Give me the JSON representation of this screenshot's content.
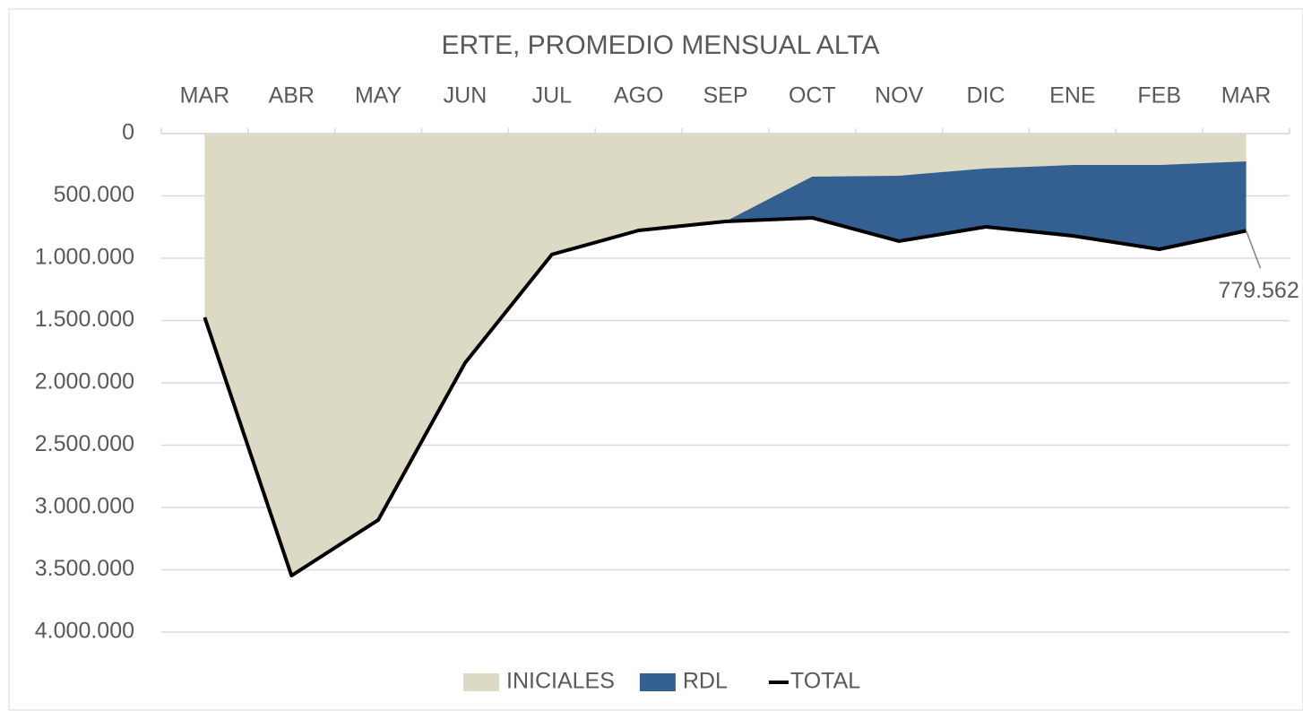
{
  "chart_data": {
    "type": "stacked-area-line",
    "title": "ERTE, PROMEDIO MENSUAL ALTA",
    "categories": [
      "MAR",
      "ABR",
      "MAY",
      "JUN",
      "JUL",
      "AGO",
      "SEP",
      "OCT",
      "NOV",
      "DIC",
      "ENE",
      "FEB",
      "MAR"
    ],
    "series": [
      {
        "name": "INICIALES",
        "color": "#dcd9c4",
        "kind": "area",
        "values": [
          1475000,
          3547000,
          3100000,
          1840000,
          970000,
          777000,
          705000,
          345000,
          338000,
          280000,
          252000,
          252000,
          223000
        ]
      },
      {
        "name": "RDL",
        "color": "#335f91",
        "kind": "area",
        "values": [
          0,
          0,
          0,
          0,
          0,
          0,
          0,
          331000,
          525000,
          468000,
          568000,
          676000,
          556562
        ]
      },
      {
        "name": "TOTAL",
        "color": "#000000",
        "kind": "line",
        "values": [
          1475000,
          3547000,
          3100000,
          1840000,
          970000,
          777000,
          705000,
          676000,
          863000,
          748000,
          820000,
          928000,
          779562
        ],
        "value_labels": [
          null,
          null,
          null,
          null,
          null,
          null,
          null,
          null,
          null,
          null,
          null,
          null,
          "779.562"
        ]
      }
    ],
    "ylim": [
      0,
      4000000
    ],
    "y_reversed": true,
    "yticks": [
      0,
      {
        "value": 500000,
        "label": "500.000"
      },
      {
        "value": 1000000,
        "label": "1.000.000"
      },
      {
        "value": 1500000,
        "label": "1.500.000"
      },
      {
        "value": 2000000,
        "label": "2.000.000"
      },
      {
        "value": 2500000,
        "label": "2.500.000"
      },
      {
        "value": 3000000,
        "label": "3.000.000"
      },
      {
        "value": 3500000,
        "label": "3.500.000"
      },
      {
        "value": 4000000,
        "label": "4.000.000"
      }
    ],
    "grid": true,
    "legend": "bottom"
  }
}
